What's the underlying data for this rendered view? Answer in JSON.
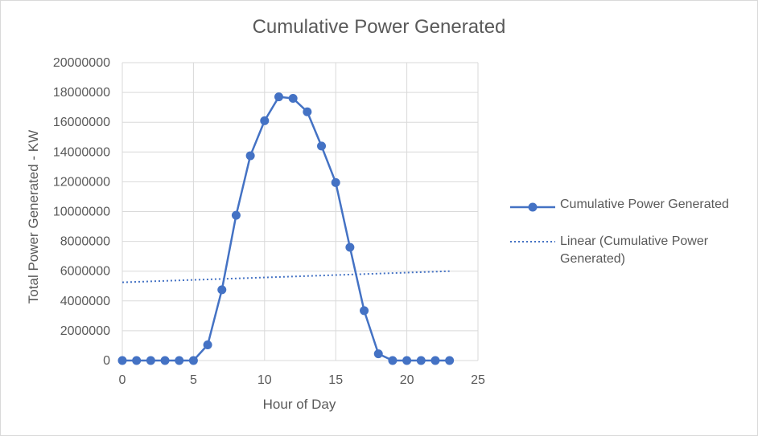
{
  "chart_data": {
    "type": "line",
    "title": "Cumulative Power Generated",
    "xlabel": "Hour of Day",
    "ylabel": "Total Power Generated - KW",
    "xlim": [
      0,
      25
    ],
    "ylim": [
      0,
      20000000
    ],
    "x_ticks": [
      "0",
      "5",
      "10",
      "15",
      "20",
      "25"
    ],
    "y_ticks": [
      "0",
      "2000000",
      "4000000",
      "6000000",
      "8000000",
      "10000000",
      "12000000",
      "14000000",
      "16000000",
      "18000000",
      "20000000"
    ],
    "grid": true,
    "legend_position": "right",
    "series": [
      {
        "name": "Cumulative Power Generated",
        "color": "#4472c4",
        "marker": "circle",
        "x": [
          0,
          1,
          2,
          3,
          4,
          5,
          6,
          7,
          8,
          9,
          10,
          11,
          12,
          13,
          14,
          15,
          16,
          17,
          18,
          19,
          20,
          21,
          22,
          23
        ],
        "values": [
          0,
          0,
          0,
          0,
          0,
          0,
          1050000,
          4750000,
          9750000,
          13750000,
          16100000,
          17700000,
          17600000,
          16700000,
          14400000,
          11950000,
          7600000,
          3350000,
          450000,
          0,
          0,
          0,
          0,
          0
        ]
      }
    ],
    "trendline": {
      "name": "Linear (Cumulative Power Generated)",
      "type": "linear",
      "style": "dotted",
      "color": "#4472c4",
      "x": [
        0,
        23
      ],
      "values": [
        5250000,
        6000000
      ]
    }
  }
}
